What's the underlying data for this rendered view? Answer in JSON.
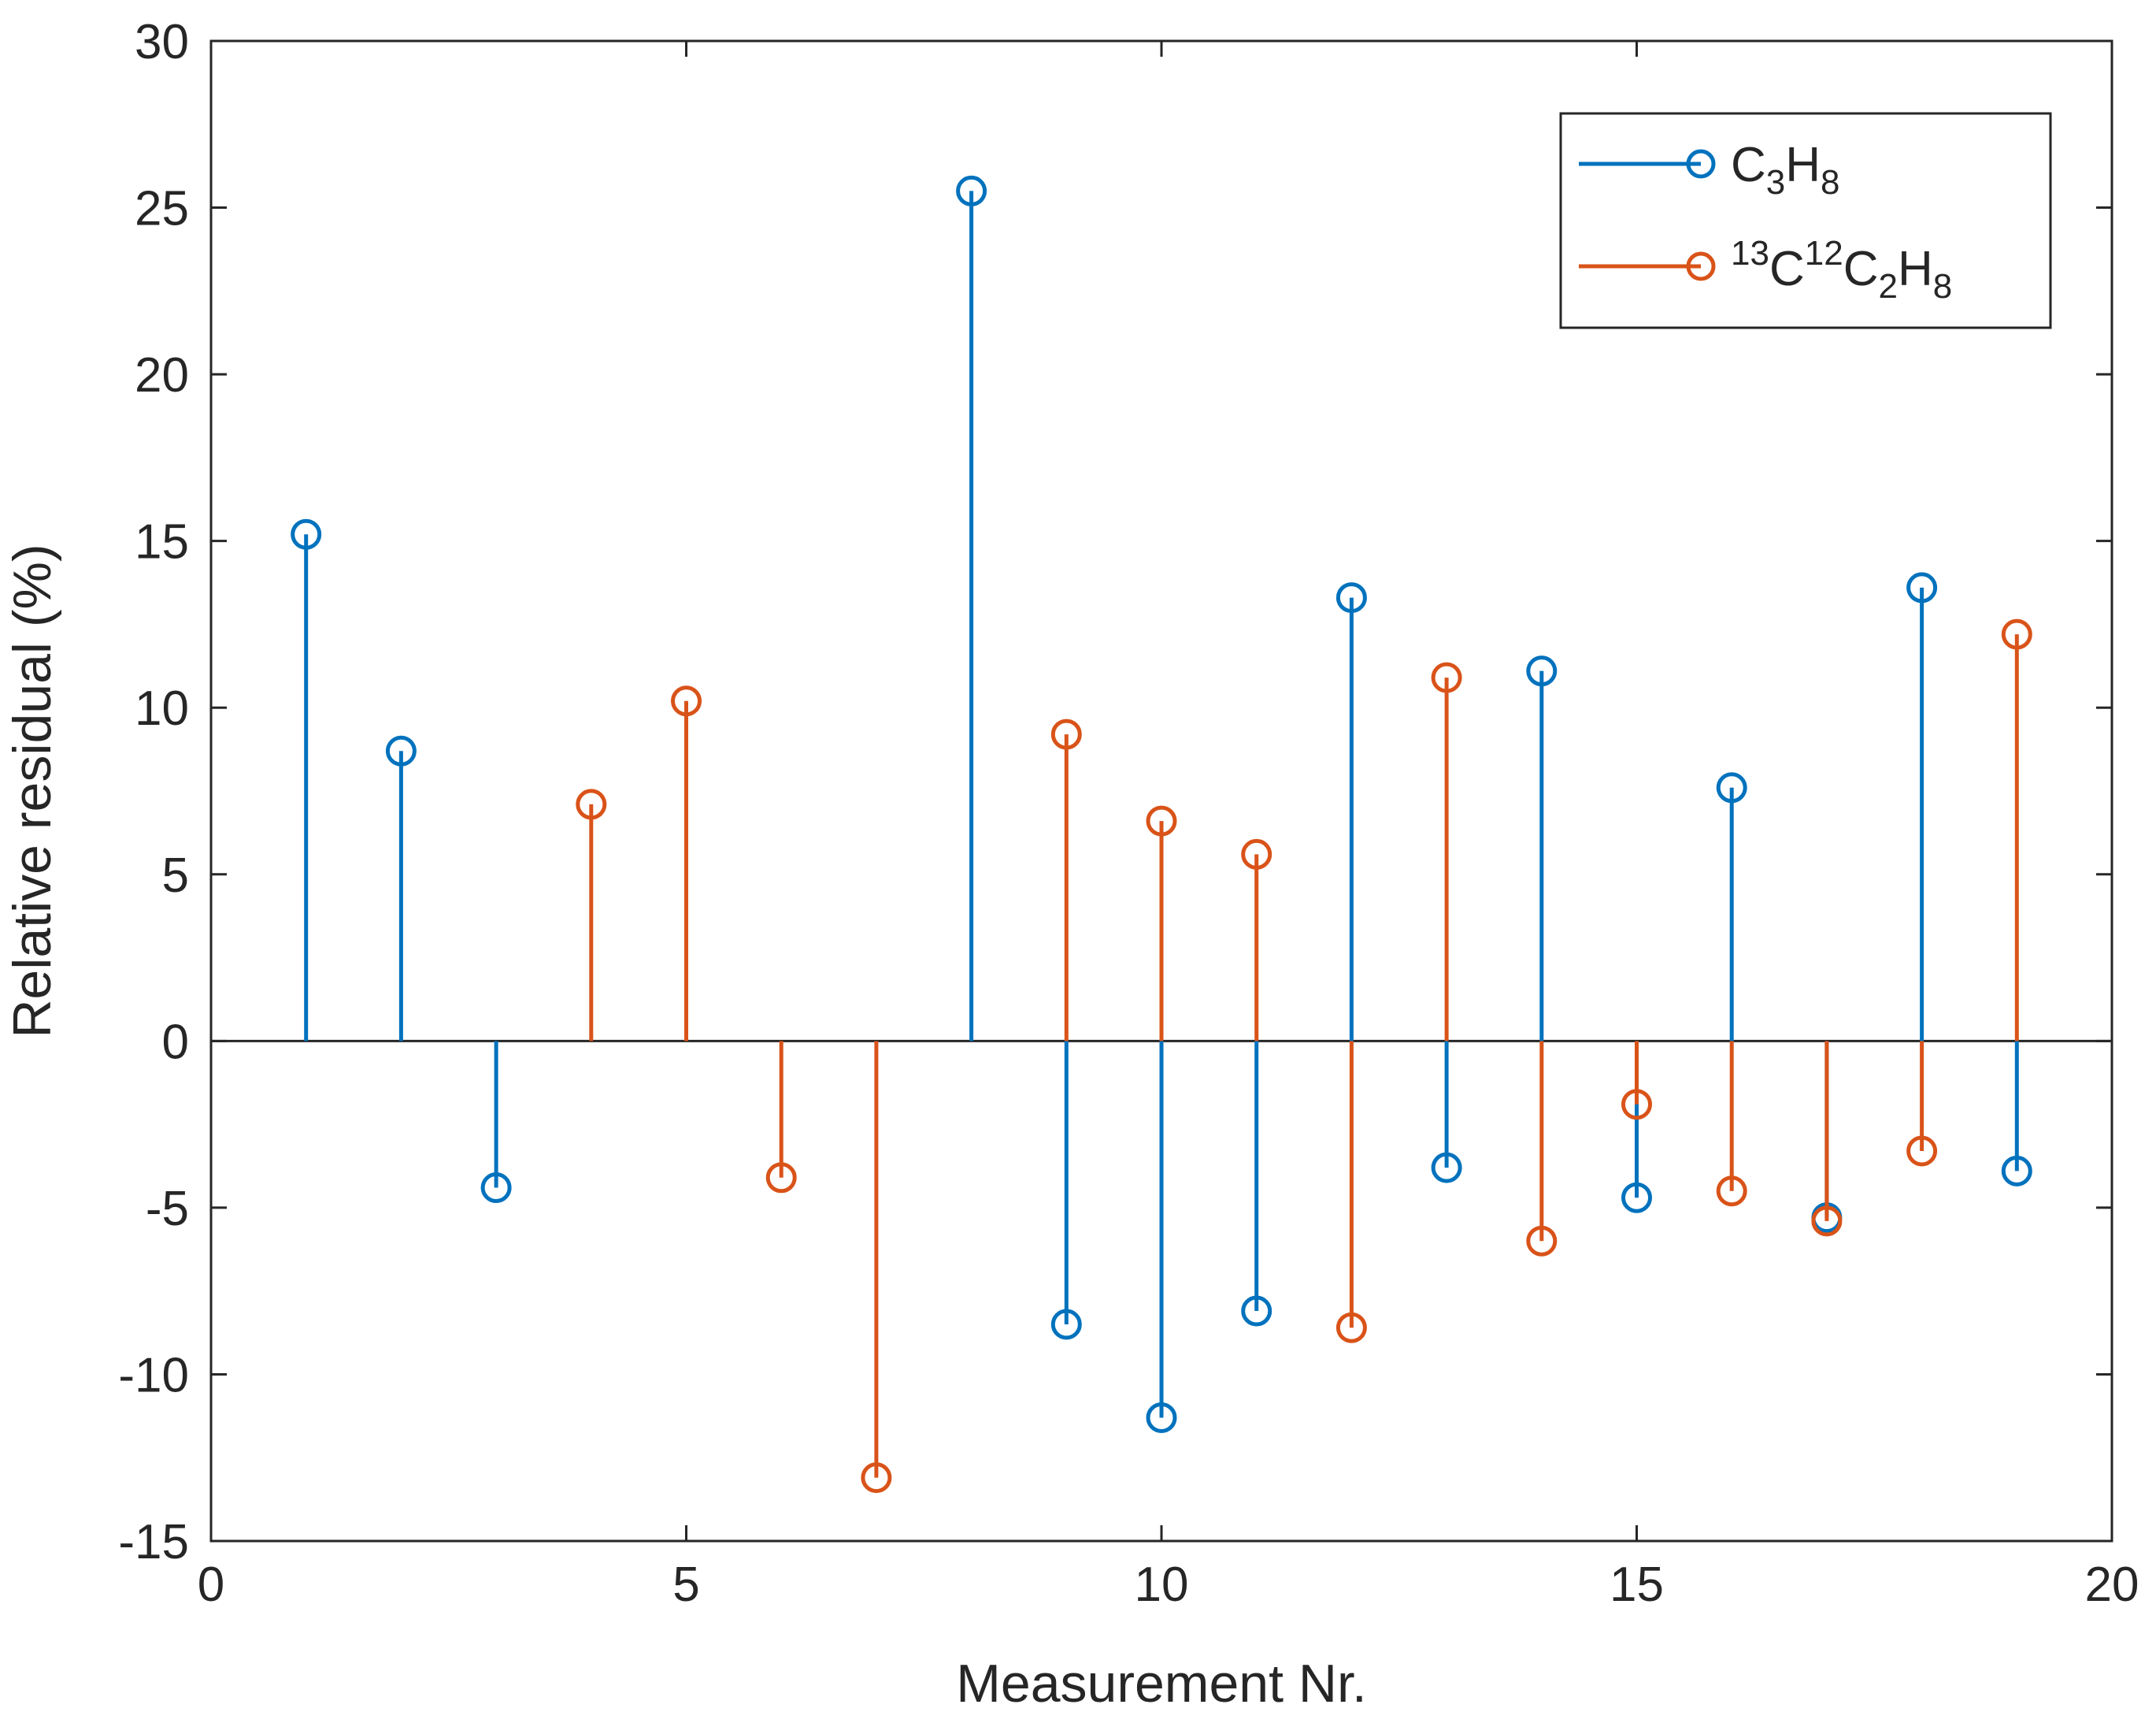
{
  "chart_data": {
    "type": "stem",
    "title": "",
    "xlabel": "Measurement Nr.",
    "ylabel": "Relative residual (%)",
    "xlim": [
      0,
      20
    ],
    "ylim": [
      -15,
      30
    ],
    "x_ticks": [
      0,
      5,
      10,
      15,
      20
    ],
    "y_ticks": [
      -15,
      -10,
      -5,
      0,
      5,
      10,
      15,
      20,
      25,
      30
    ],
    "grid": false,
    "legend_position": "top-right",
    "series": [
      {
        "name": "C3H8",
        "legend": {
          "base": "C",
          "sub1": "3",
          "mid": "H",
          "sub2": "8"
        },
        "color": "#0072BD",
        "x": [
          1,
          2,
          3,
          8,
          9,
          10,
          11,
          12,
          13,
          14,
          15,
          16,
          17,
          18,
          19
        ],
        "values": [
          15.2,
          8.7,
          -4.4,
          25.5,
          -8.5,
          -11.3,
          -8.1,
          13.3,
          -3.8,
          11.1,
          -4.7,
          7.6,
          -5.3,
          13.6,
          -3.9
        ]
      },
      {
        "name": "13C12C2H8",
        "legend": {
          "sup1": "13",
          "base1": "C",
          "sup2": "12",
          "base2": "C",
          "sub1": "2",
          "base3": "H",
          "sub2": "8"
        },
        "color": "#D95319",
        "x": [
          4,
          5,
          6,
          7,
          9,
          10,
          11,
          12,
          13,
          14,
          15,
          16,
          17,
          18,
          19
        ],
        "values": [
          7.1,
          10.2,
          -4.1,
          -13.1,
          9.2,
          6.6,
          5.6,
          -8.6,
          10.9,
          -6.0,
          -1.9,
          -4.5,
          -5.4,
          -3.3,
          12.2
        ]
      }
    ]
  }
}
